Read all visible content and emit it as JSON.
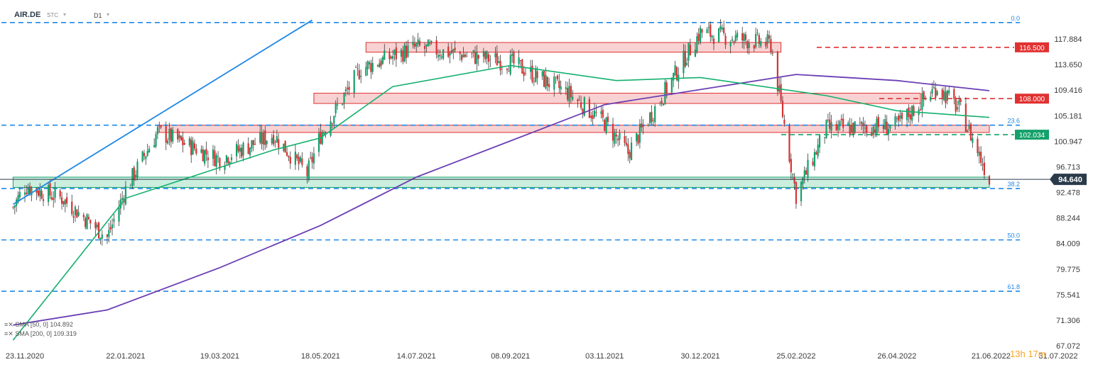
{
  "header": {
    "symbol": "AIR.DE",
    "chart_style": "STC",
    "interval": "D1"
  },
  "legend": [
    {
      "label": "SMA [50, 0] 104.892"
    },
    {
      "label": "SMA [200, 0] 109.319"
    }
  ],
  "timer": {
    "hours": "13",
    "h_unit": "h",
    "minutes": "17",
    "m_unit": "m"
  },
  "chart_data": {
    "type": "candlestick",
    "y_axis_ticks": [
      "117.884",
      "113.650",
      "109.416",
      "105.181",
      "100.947",
      "96.713",
      "92.478",
      "88.244",
      "84.009",
      "79.775",
      "75.541",
      "71.306",
      "67.072"
    ],
    "x_axis_ticks": [
      "23.11.2020",
      "22.01.2021",
      "19.03.2021",
      "18.05.2021",
      "14.07.2021",
      "08.09.2021",
      "03.11.2021",
      "30.12.2021",
      "25.02.2022",
      "26.04.2022",
      "21.06.2022",
      "31.07.2022"
    ],
    "ylim": [
      67.072,
      122.0
    ],
    "current_price": 94.64,
    "price_levels": [
      {
        "label": "116.500",
        "value": 116.5,
        "color": "#e03131"
      },
      {
        "label": "108.000",
        "value": 108.0,
        "color": "#e03131"
      },
      {
        "label": "102.034",
        "value": 102.034,
        "color": "#14a06a"
      }
    ],
    "fibonacci": [
      {
        "label": "0.0",
        "value": 120.6
      },
      {
        "label": "23.6",
        "value": 103.6
      },
      {
        "label": "38.2",
        "value": 93.1
      },
      {
        "label": "50.0",
        "value": 84.6
      },
      {
        "label": "61.8",
        "value": 76.1
      }
    ],
    "zones": [
      {
        "top": 117.3,
        "bottom": 115.7,
        "start": "14.06.2021",
        "end": "16.02.2022",
        "color": "#e03131"
      },
      {
        "top": 108.9,
        "bottom": 107.2,
        "start": "14.05.2021",
        "end": "10.05.2022",
        "color": "#e03131"
      },
      {
        "top": 103.6,
        "bottom": 102.4,
        "start": "10.02.2021",
        "end": "20.06.2022",
        "color": "#e03131"
      },
      {
        "top": 95.0,
        "bottom": 93.3,
        "start": "16.11.2020",
        "end": "20.06.2022",
        "color": "#14a06a"
      }
    ],
    "key_points": [
      {
        "date": "16.11.2020",
        "close": 90.0
      },
      {
        "date": "23.11.2020",
        "close": 93.5
      },
      {
        "date": "15.12.2020",
        "close": 91.5
      },
      {
        "date": "11.01.2021",
        "close": 85.0
      },
      {
        "date": "22.01.2021",
        "close": 93.0
      },
      {
        "date": "10.02.2021",
        "close": 102.5
      },
      {
        "date": "19.03.2021",
        "close": 98.0
      },
      {
        "date": "20.04.2021",
        "close": 102.0
      },
      {
        "date": "10.05.2021",
        "close": 95.5
      },
      {
        "date": "18.05.2021",
        "close": 102.0
      },
      {
        "date": "11.06.2021",
        "close": 113.0
      },
      {
        "date": "14.07.2021",
        "close": 116.5
      },
      {
        "date": "08.09.2021",
        "close": 114.0
      },
      {
        "date": "12.10.2021",
        "close": 109.0
      },
      {
        "date": "03.11.2021",
        "close": 104.0
      },
      {
        "date": "17.11.2021",
        "close": 99.0
      },
      {
        "date": "30.12.2021",
        "close": 119.0
      },
      {
        "date": "10.02.2022",
        "close": 117.0
      },
      {
        "date": "25.02.2022",
        "close": 92.0
      },
      {
        "date": "15.03.2022",
        "close": 103.0
      },
      {
        "date": "26.04.2022",
        "close": 103.5
      },
      {
        "date": "20.05.2022",
        "close": 110.0
      },
      {
        "date": "03.06.2022",
        "close": 106.0
      },
      {
        "date": "20.06.2022",
        "close": 94.64
      }
    ],
    "sma50": [
      {
        "date": "16.11.2020",
        "value": 68.0
      },
      {
        "date": "22.01.2021",
        "value": 91.5
      },
      {
        "date": "20.04.2021",
        "value": 99.5
      },
      {
        "date": "18.05.2021",
        "value": 101.5
      },
      {
        "date": "30.06.2021",
        "value": 110.0
      },
      {
        "date": "08.09.2021",
        "value": 113.5
      },
      {
        "date": "10.11.2021",
        "value": 111.0
      },
      {
        "date": "30.12.2021",
        "value": 111.5
      },
      {
        "date": "15.03.2022",
        "value": 108.5
      },
      {
        "date": "26.04.2022",
        "value": 106.0
      },
      {
        "date": "20.06.2022",
        "value": 104.892
      }
    ],
    "sma200": [
      {
        "date": "16.11.2020",
        "value": 70.5
      },
      {
        "date": "11.01.2021",
        "value": 73.0
      },
      {
        "date": "19.03.2021",
        "value": 80.0
      },
      {
        "date": "18.05.2021",
        "value": 87.0
      },
      {
        "date": "14.07.2021",
        "value": 95.0
      },
      {
        "date": "08.09.2021",
        "value": 101.0
      },
      {
        "date": "03.11.2021",
        "value": 107.0
      },
      {
        "date": "30.12.2021",
        "value": 109.5
      },
      {
        "date": "25.02.2022",
        "value": 112.0
      },
      {
        "date": "26.04.2022",
        "value": 111.0
      },
      {
        "date": "20.06.2022",
        "value": 109.319
      }
    ],
    "trendline": [
      {
        "date": "16.11.2020",
        "value": 90.5
      },
      {
        "date": "13.05.2021",
        "value": 121.0
      }
    ],
    "colors": {
      "up": "#14a06a",
      "down": "#d63434",
      "sma50": "#14b06e",
      "sma200": "#6b3fb4",
      "fib": "#1e88e5",
      "trend": "#1e88e5",
      "price_box": "#2a3a4a"
    }
  }
}
